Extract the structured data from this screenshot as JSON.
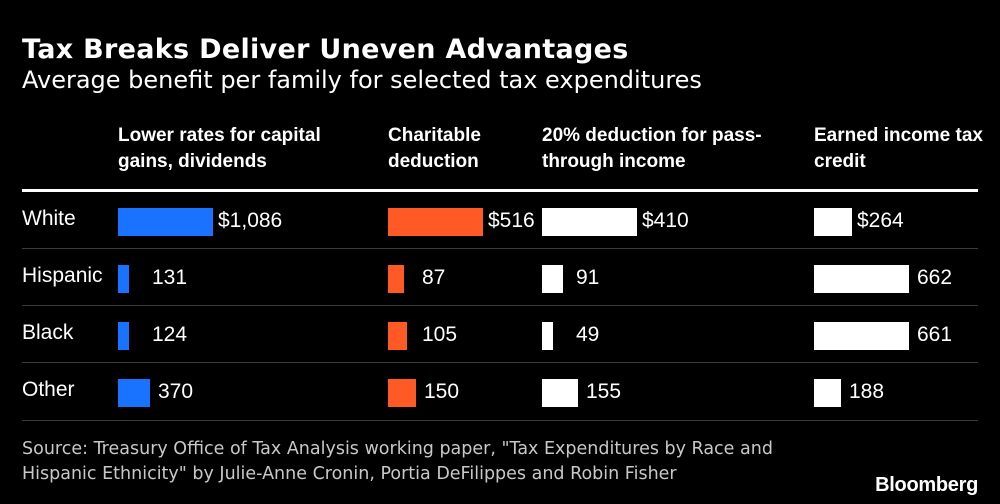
{
  "title": "Tax Breaks Deliver Uneven Advantages",
  "subtitle": "Average benefit per family for selected tax expenditures",
  "source": "Source: Treasury Office of Tax Analysis working paper, \"Tax Expenditures by Race and Hispanic Ethnicity\" by Julie-Anne Cronin, Portia DeFilippes and Robin Fisher",
  "brand": "Bloomberg",
  "chart_data": {
    "type": "bar",
    "categories": [
      "White",
      "Hispanic",
      "Black",
      "Other"
    ],
    "series": [
      {
        "name": "Lower rates for capital gains, dividends",
        "color": "#1a73ff",
        "values": [
          1086,
          131,
          124,
          370
        ],
        "labels": [
          "$1,086",
          "131",
          "124",
          "370"
        ]
      },
      {
        "name": "Charitable deduction",
        "color": "#ff5a26",
        "values": [
          516,
          87,
          105,
          150
        ],
        "labels": [
          "$516",
          "87",
          "105",
          "150"
        ]
      },
      {
        "name": "20% deduction for pass-through income",
        "color": "#ffffff",
        "values": [
          410,
          91,
          49,
          155
        ],
        "labels": [
          "$410",
          "91",
          "49",
          "155"
        ]
      },
      {
        "name": "Earned income tax credit",
        "color": "#ffffff",
        "values": [
          264,
          662,
          661,
          188
        ],
        "labels": [
          "$264",
          "662",
          "661",
          "188"
        ]
      }
    ]
  }
}
